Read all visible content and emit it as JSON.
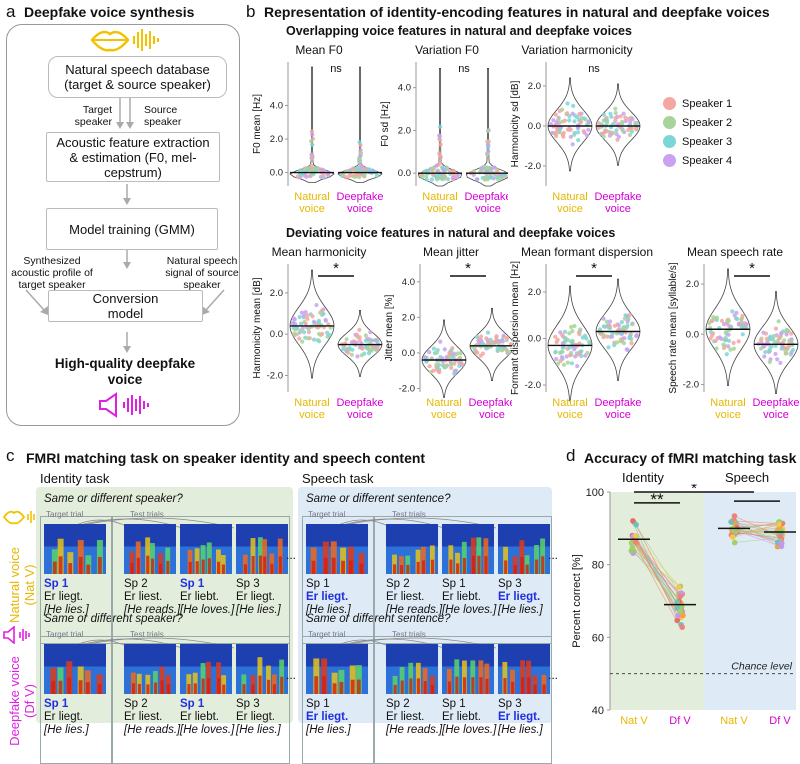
{
  "panel_a": {
    "letter": "a",
    "title": "Deepfake voice synthesis",
    "db_box": "Natural speech database (target & source speaker)",
    "target_label": "Target speaker",
    "source_label": "Source speaker",
    "acoustic_box": "Acoustic feature extraction & estimation (F0, mel-cepstrum)",
    "model_box": "Model training (GMM)",
    "synth_label": "Synthesized acoustic profile of target speaker",
    "natural_signal_label": "Natural speech signal of source speaker",
    "conversion_box": "Conversion model",
    "output_label": "High-quality deepfake voice",
    "colors": {
      "lips": "#f2c200",
      "speaker": "#e020e0"
    }
  },
  "panel_b": {
    "letter": "b",
    "title": "Representation of identity-encoding features in natural and deepfake voices",
    "overlap_title": "Overlapping voice features in natural and deepfake voices",
    "deviate_title": "Deviating voice features in natural and deepfake voices",
    "legend": [
      {
        "label": "Speaker 1",
        "color": "#f4a6a0"
      },
      {
        "label": "Speaker 2",
        "color": "#a8d39a"
      },
      {
        "label": "Speaker 3",
        "color": "#7dd6d6"
      },
      {
        "label": "Speaker 4",
        "color": "#c9a2f0"
      }
    ],
    "group_colors": {
      "natural": "#e6b800",
      "deepfake": "#d400d4"
    }
  },
  "chart_data": [
    {
      "type": "violin",
      "title": "Mean F0",
      "ylabel": "F0 mean [Hz]",
      "yticks": [
        "0.0",
        "2.0",
        "4.0"
      ],
      "categories": [
        "Natural voice",
        "Deepfake voice"
      ],
      "means": [
        0.0,
        0.0
      ],
      "sig": "ns"
    },
    {
      "type": "violin",
      "title": "Variation F0",
      "ylabel": "F0 sd [Hz]",
      "yticks": [
        "0.0",
        "2.0",
        "4.0"
      ],
      "categories": [
        "Natural voice",
        "Deepfake voice"
      ],
      "means": [
        0.0,
        0.0
      ],
      "sig": "ns"
    },
    {
      "type": "violin",
      "title": "Variation harmonicity",
      "ylabel": "Harmonicity sd [dB]",
      "yticks": [
        "-2.0",
        "0.0",
        "2.0"
      ],
      "categories": [
        "Natural voice",
        "Deepfake voice"
      ],
      "means": [
        0.0,
        0.0
      ],
      "sig": "ns"
    },
    {
      "type": "violin",
      "title": "Mean harmonicity",
      "ylabel": "Harmonicity mean [dB]",
      "yticks": [
        "-2.0",
        "0.0",
        "2.0"
      ],
      "categories": [
        "Natural voice",
        "Deepfake voice"
      ],
      "means": [
        0.4,
        -0.5
      ],
      "sig": "*"
    },
    {
      "type": "violin",
      "title": "Mean jitter",
      "ylabel": "Jitter mean [%]",
      "yticks": [
        "-2.0",
        "0.0",
        "2.0",
        "4.0"
      ],
      "categories": [
        "Natural voice",
        "Deepfake voice"
      ],
      "means": [
        -0.4,
        0.4
      ],
      "sig": "*"
    },
    {
      "type": "violin",
      "title": "Mean formant dispersion",
      "ylabel": "Formant dispersion mean [Hz]",
      "yticks": [
        "-2.0",
        "0.0",
        "2.0"
      ],
      "categories": [
        "Natural voice",
        "Deepfake voice"
      ],
      "means": [
        -0.3,
        0.3
      ],
      "sig": "*"
    },
    {
      "type": "violin",
      "title": "Mean speech rate",
      "ylabel": "Speech rate mean [syllable/s]",
      "yticks": [
        "-2.0",
        "0.0",
        "2.0"
      ],
      "categories": [
        "Natural voice",
        "Deepfake voice"
      ],
      "means": [
        0.2,
        -0.4
      ],
      "sig": "*"
    },
    {
      "type": "scatter",
      "title": "Accuracy of fMRI matching task",
      "groups": [
        "Identity",
        "Speech"
      ],
      "categories": [
        "Nat V",
        "Df V",
        "Nat V",
        "Df V"
      ],
      "means": [
        87,
        69,
        90,
        89
      ],
      "ylabel": "Percent correct [%]",
      "ylim": [
        40,
        100
      ],
      "yticks": [
        "40",
        "60",
        "80",
        "100"
      ],
      "chance_label": "Chance level",
      "chance": 50,
      "sig": [
        "**",
        "*"
      ]
    }
  ],
  "panel_c": {
    "letter": "c",
    "title": "FMRI matching task on speaker identity and speech content",
    "identity_task": "Identity task",
    "speech_task": "Speech task",
    "q_speaker": "Same or different speaker?",
    "q_sentence": "Same or different sentence?",
    "target_trial": "Target trial",
    "test_trials": "Test trials",
    "natural_label": "Natural voice (Nat V)",
    "deepfake_label": "Deepfake voice (Df V)",
    "ellipsis": "...",
    "identity_trials": [
      {
        "sp": "Sp 1",
        "de": "Er liegt.",
        "en": "[He lies.]"
      },
      {
        "sp": "Sp 2",
        "de": "Er liest.",
        "en": "[He reads.]"
      },
      {
        "sp": "Sp 1",
        "de": "Er liebt.",
        "en": "[He loves.]"
      },
      {
        "sp": "Sp 3",
        "de": "Er liegt.",
        "en": "[He lies.]"
      }
    ],
    "speech_trials": [
      {
        "sp": "Sp 1",
        "de": "Er liegt.",
        "en": "[He lies.]"
      },
      {
        "sp": "Sp 2",
        "de": "Er liest.",
        "en": "[He reads.]"
      },
      {
        "sp": "Sp 1",
        "de": "Er liebt.",
        "en": "[He loves.]"
      },
      {
        "sp": "Sp 3",
        "de": "Er liegt.",
        "en": "[He lies.]"
      }
    ]
  },
  "panel_d": {
    "letter": "d",
    "title": "Accuracy of fMRI matching task",
    "identity": "Identity",
    "speech": "Speech",
    "ylabel": "Percent correct [%]",
    "chance": "Chance level",
    "xlabels": [
      "Nat V",
      "Df V",
      "Nat V",
      "Df V"
    ],
    "sig_double": "**",
    "sig_single": "*"
  }
}
